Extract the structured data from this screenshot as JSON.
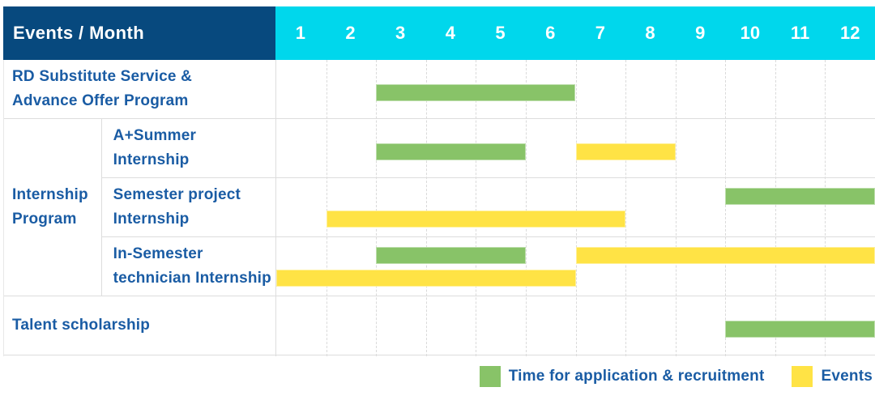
{
  "header": {
    "label": "Events / Month",
    "months": [
      "1",
      "2",
      "3",
      "4",
      "5",
      "6",
      "7",
      "8",
      "9",
      "10",
      "11",
      "12"
    ]
  },
  "colors": {
    "navy": "#07497E",
    "cyan": "#00D7EC",
    "green": "#88C368",
    "yellow": "#FFE345",
    "label_text": "#1A5CA4",
    "grid": "#DDDDDD"
  },
  "group_label": "Internship\nProgram",
  "chart_data": {
    "type": "gantt",
    "title": "Events / Month",
    "x_unit": "month",
    "x_ticks": [
      1,
      2,
      3,
      4,
      5,
      6,
      7,
      8,
      9,
      10,
      11,
      12
    ],
    "x_range": [
      1,
      12
    ],
    "legend_position": "bottom-right",
    "bar_colors": {
      "green": "#88C368",
      "yellow": "#FFE345"
    },
    "bar_meanings": {
      "green": "Time for application & recruitment",
      "yellow": "Events"
    },
    "rows": [
      {
        "id": "rd-substitute",
        "group": null,
        "label": "RD Substitute Service &\nAdvance Offer Program",
        "bars": [
          {
            "color": "green",
            "start_month": 3,
            "end_month": 6,
            "lane": "single"
          }
        ]
      },
      {
        "id": "a-plus-summer-internship",
        "group": "Internship Program",
        "label": "A+Summer\nInternship",
        "bars": [
          {
            "color": "green",
            "start_month": 3,
            "end_month": 5,
            "lane": "single"
          },
          {
            "color": "yellow",
            "start_month": 7,
            "end_month": 8,
            "lane": "single"
          }
        ]
      },
      {
        "id": "semester-project-internship",
        "group": "Internship Program",
        "label": "Semester project\nInternship",
        "bars": [
          {
            "color": "green",
            "start_month": 10,
            "end_month": 12,
            "lane": "upper"
          },
          {
            "color": "yellow",
            "start_month": 2,
            "end_month": 7,
            "lane": "lower"
          }
        ]
      },
      {
        "id": "in-semester-technician-internship",
        "group": "Internship Program",
        "label": "In-Semester\ntechnician Internship",
        "bars": [
          {
            "color": "green",
            "start_month": 3,
            "end_month": 5,
            "lane": "upper"
          },
          {
            "color": "yellow",
            "start_month": 7,
            "end_month": 12,
            "lane": "upper"
          },
          {
            "color": "yellow",
            "start_month": 1,
            "end_month": 6,
            "lane": "lower"
          }
        ]
      },
      {
        "id": "talent-scholarship",
        "group": null,
        "label": "Talent scholarship",
        "bars": [
          {
            "color": "green",
            "start_month": 10,
            "end_month": 12,
            "lane": "single"
          }
        ]
      }
    ]
  },
  "legend": [
    {
      "color": "green",
      "label": "Time for application & recruitment"
    },
    {
      "color": "yellow",
      "label": "Events"
    }
  ]
}
